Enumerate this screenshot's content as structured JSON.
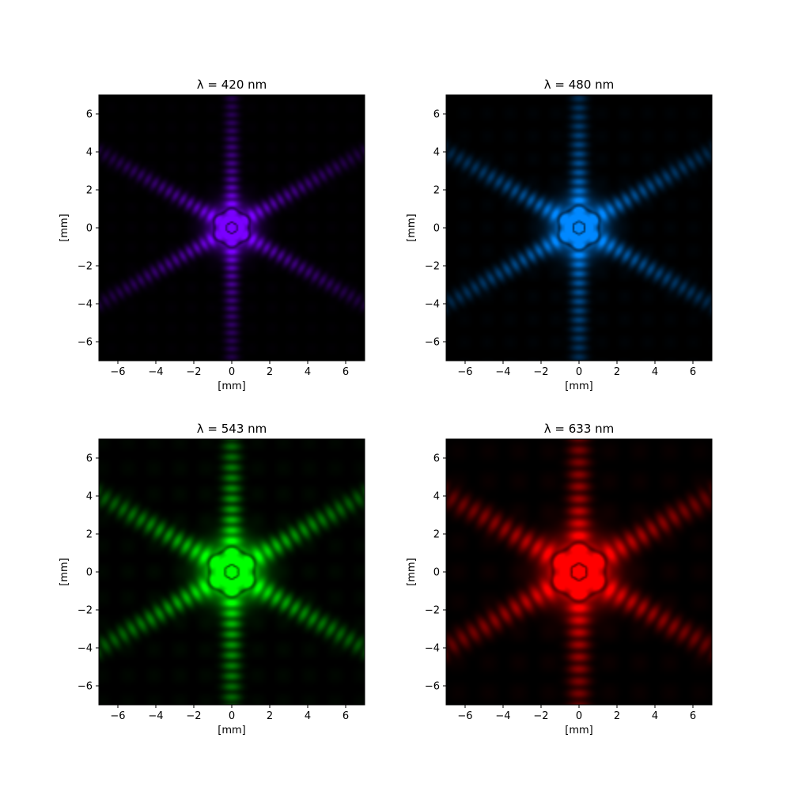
{
  "chart_data": [
    {
      "type": "heatmap",
      "title": "λ = 420 nm",
      "xlabel": "[mm]",
      "ylabel": "[mm]",
      "xlim": [
        -7,
        7
      ],
      "ylim": [
        -7,
        7
      ],
      "xticks": [
        -6,
        -4,
        -2,
        0,
        2,
        4,
        6
      ],
      "yticks": [
        -6,
        -4,
        -2,
        0,
        2,
        4,
        6
      ],
      "color": "#7a00ff",
      "wavelength_nm": 420,
      "pattern": "six-arm diffraction star from hexagonal aperture, central bright spot with dark ring",
      "grid": false
    },
    {
      "type": "heatmap",
      "title": "λ = 480 nm",
      "xlabel": "[mm]",
      "ylabel": "[mm]",
      "xlim": [
        -7,
        7
      ],
      "ylim": [
        -7,
        7
      ],
      "xticks": [
        -6,
        -4,
        -2,
        0,
        2,
        4,
        6
      ],
      "yticks": [
        -6,
        -4,
        -2,
        0,
        2,
        4,
        6
      ],
      "color": "#0088ff",
      "wavelength_nm": 480,
      "pattern": "six-arm diffraction star from hexagonal aperture, central bright spot with dark ring",
      "grid": false
    },
    {
      "type": "heatmap",
      "title": "λ = 543 nm",
      "xlabel": "[mm]",
      "ylabel": "[mm]",
      "xlim": [
        -7,
        7
      ],
      "ylim": [
        -7,
        7
      ],
      "xticks": [
        -6,
        -4,
        -2,
        0,
        2,
        4,
        6
      ],
      "yticks": [
        -6,
        -4,
        -2,
        0,
        2,
        4,
        6
      ],
      "color": "#00ff00",
      "wavelength_nm": 543,
      "pattern": "six-arm diffraction star from hexagonal aperture, central bright spot with dark ring",
      "grid": false
    },
    {
      "type": "heatmap",
      "title": "λ = 633 nm",
      "xlabel": "[mm]",
      "ylabel": "[mm]",
      "xlim": [
        -7,
        7
      ],
      "ylim": [
        -7,
        7
      ],
      "xticks": [
        -6,
        -4,
        -2,
        0,
        2,
        4,
        6
      ],
      "yticks": [
        -6,
        -4,
        -2,
        0,
        2,
        4,
        6
      ],
      "color": "#ff0000",
      "wavelength_nm": 633,
      "pattern": "six-arm diffraction star from hexagonal aperture, central bright spot with dark ring",
      "grid": false
    }
  ]
}
